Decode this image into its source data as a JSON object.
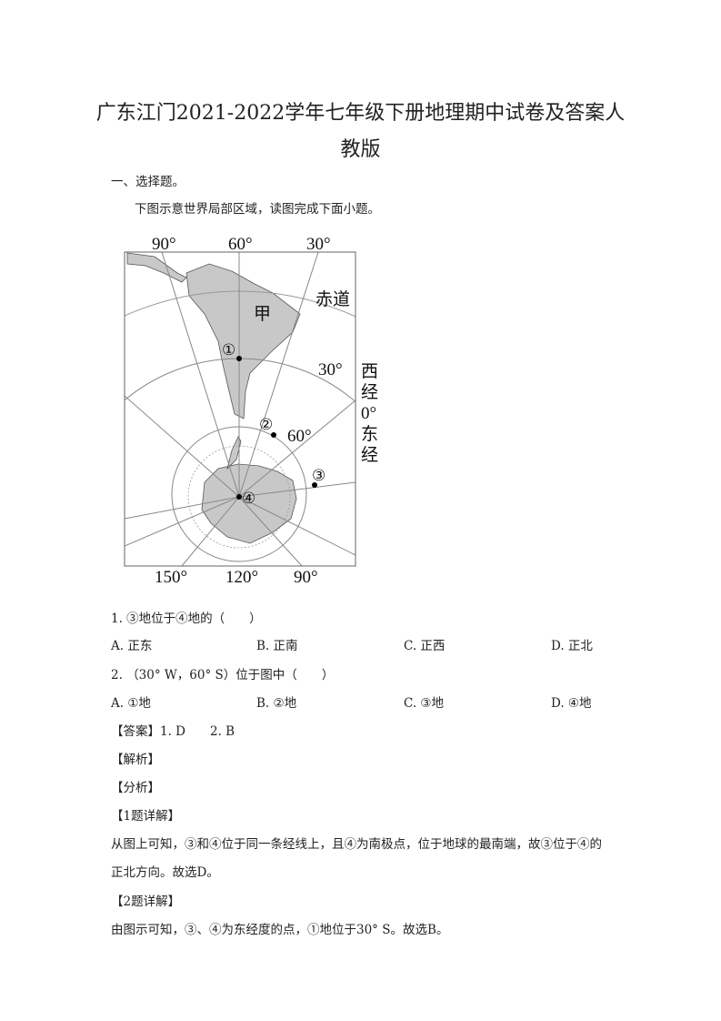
{
  "title_line1": "广东江门2021-2022学年七年级下册地理期中试卷及答案人",
  "title_line2": "教版",
  "section": "一、选择题。",
  "intro": "下图示意世界局部区域，读图完成下面小题。",
  "map": {
    "top_labels": [
      "90°",
      "60°",
      "30°"
    ],
    "bottom_labels": [
      "150°",
      "120°",
      "90°"
    ],
    "equator": "赤道",
    "lat30": "30°",
    "lat60": "60°",
    "region": "甲",
    "side": [
      "西",
      "经",
      "0°",
      "东",
      "经"
    ],
    "points": [
      "①",
      "②",
      "③",
      "④"
    ],
    "land_color": "#c8c8c8"
  },
  "q1": {
    "stem": "1. ③地位于④地的（　　）",
    "options": [
      "A. 正东",
      "B. 正南",
      "C. 正西",
      "D. 正北"
    ]
  },
  "q2": {
    "stem": "2. （30° W，60° S）位于图中（　　）",
    "options": [
      "A. ①地",
      "B. ②地",
      "C. ③地",
      "D. ④地"
    ]
  },
  "answer": "【答案】1. D　　2. B",
  "analysis": "【解析】",
  "fenxi": "【分析】",
  "d1_head": "【1题详解】",
  "d1_l1": "从图上可知，③和④位于同一条经线上，且④为南极点，位于地球的最南端，故③位于④的",
  "d1_l2": "正北方向。故选D。",
  "d2_head": "【2题详解】",
  "d2_l1": "由图示可知，③、④为东经度的点，①地位于30° S。故选B。"
}
